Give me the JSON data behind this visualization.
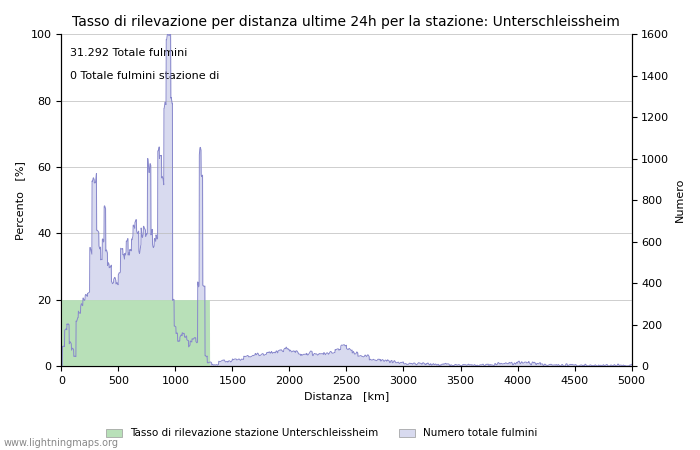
{
  "title": "Tasso di rilevazione per distanza ultime 24h per la stazione: Unterschleissheim",
  "xlabel": "Distanza   [km]",
  "ylabel_left": "Percento   [%]",
  "ylabel_right": "Numero",
  "annotation_line1": "31.292 Totale fulmini",
  "annotation_line2": "0 Totale fulmini stazione di",
  "legend_label1": "Tasso di rilevazione stazione Unterschleissheim",
  "legend_label2": "Numero totale fulmini",
  "watermark": "www.lightningmaps.org",
  "xlim": [
    0,
    5000
  ],
  "ylim_left": [
    0,
    100
  ],
  "ylim_right": [
    0,
    1600
  ],
  "fill_color_green": "#b8e0b8",
  "fill_color_blue": "#d8daef",
  "line_color": "#8888cc",
  "bg_color": "#ffffff",
  "grid_color": "#bbbbbb",
  "title_fontsize": 10,
  "label_fontsize": 8,
  "tick_fontsize": 8,
  "annotation_fontsize": 8
}
